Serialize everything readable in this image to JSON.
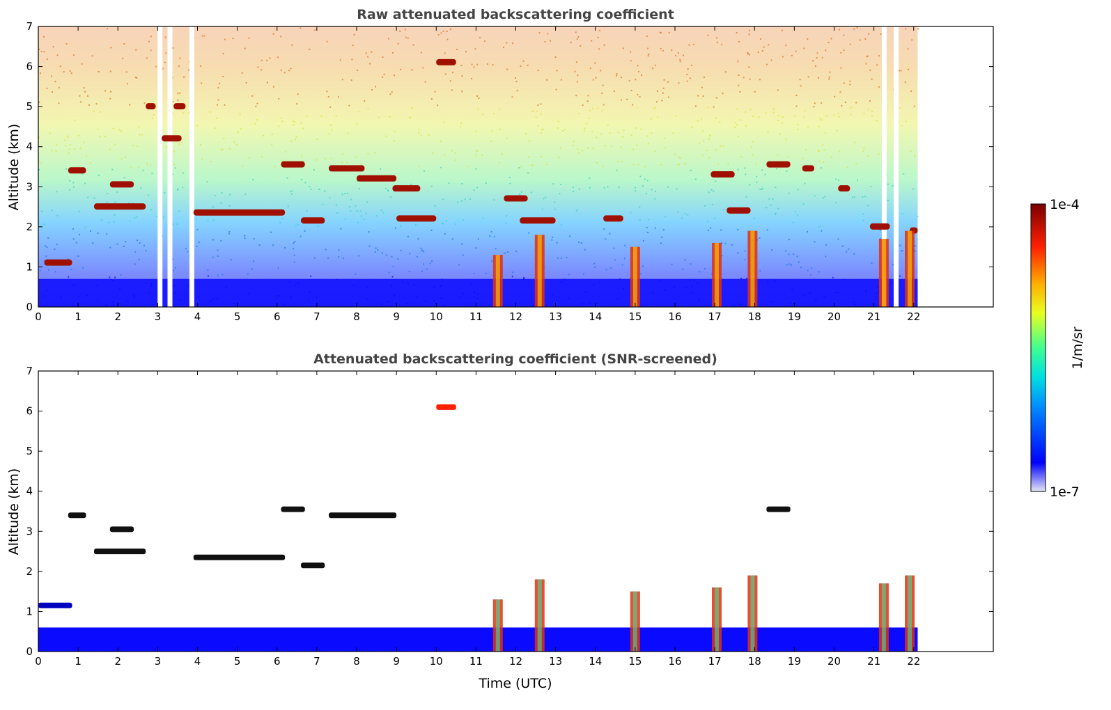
{
  "chart_data": [
    {
      "type": "heatmap",
      "title": "Raw attenuated backscattering coefficient",
      "xlabel": "",
      "ylabel": "Altitude (km)",
      "xlim": [
        0,
        24
      ],
      "ylim": [
        0,
        7
      ],
      "x_ticks": [
        "0",
        "1",
        "2",
        "3",
        "4",
        "5",
        "6",
        "7",
        "8",
        "9",
        "10",
        "11",
        "12",
        "13",
        "14",
        "15",
        "16",
        "17",
        "18",
        "19",
        "20",
        "21",
        "22"
      ],
      "y_ticks": [
        "0",
        "1",
        "2",
        "3",
        "4",
        "5",
        "6",
        "7"
      ],
      "data_time_range": [
        0,
        22.1
      ],
      "gaps_utc": [
        3.05,
        3.3,
        3.85,
        21.25,
        21.55
      ],
      "cloud_layers": [
        {
          "t0": 0.15,
          "t1": 0.85,
          "alt": 1.1
        },
        {
          "t0": 0.75,
          "t1": 1.2,
          "alt": 3.4
        },
        {
          "t0": 1.4,
          "t1": 2.7,
          "alt": 2.5
        },
        {
          "t0": 1.8,
          "t1": 2.4,
          "alt": 3.05
        },
        {
          "t0": 2.7,
          "t1": 2.95,
          "alt": 5.0
        },
        {
          "t0": 3.1,
          "t1": 3.6,
          "alt": 4.2
        },
        {
          "t0": 3.4,
          "t1": 3.7,
          "alt": 5.0
        },
        {
          "t0": 3.9,
          "t1": 6.2,
          "alt": 2.35
        },
        {
          "t0": 6.1,
          "t1": 6.7,
          "alt": 3.55
        },
        {
          "t0": 6.6,
          "t1": 7.2,
          "alt": 2.15
        },
        {
          "t0": 7.3,
          "t1": 8.2,
          "alt": 3.45
        },
        {
          "t0": 8.0,
          "t1": 9.0,
          "alt": 3.2
        },
        {
          "t0": 8.9,
          "t1": 9.6,
          "alt": 2.95
        },
        {
          "t0": 9.0,
          "t1": 10.0,
          "alt": 2.2
        },
        {
          "t0": 10.0,
          "t1": 10.5,
          "alt": 6.1
        },
        {
          "t0": 11.7,
          "t1": 12.3,
          "alt": 2.7
        },
        {
          "t0": 12.1,
          "t1": 13.0,
          "alt": 2.15
        },
        {
          "t0": 14.2,
          "t1": 14.7,
          "alt": 2.2
        },
        {
          "t0": 16.9,
          "t1": 17.5,
          "alt": 3.3
        },
        {
          "t0": 17.3,
          "t1": 17.9,
          "alt": 2.4
        },
        {
          "t0": 18.3,
          "t1": 18.9,
          "alt": 3.55
        },
        {
          "t0": 19.2,
          "t1": 19.5,
          "alt": 3.45
        },
        {
          "t0": 20.1,
          "t1": 20.4,
          "alt": 2.95
        },
        {
          "t0": 20.9,
          "t1": 21.4,
          "alt": 2.0
        },
        {
          "t0": 21.9,
          "t1": 22.1,
          "alt": 1.9
        }
      ],
      "precip_columns": [
        {
          "t": 11.55,
          "top": 1.3
        },
        {
          "t": 12.6,
          "top": 1.8
        },
        {
          "t": 15.0,
          "top": 1.5
        },
        {
          "t": 17.05,
          "top": 1.6
        },
        {
          "t": 17.95,
          "top": 1.9
        },
        {
          "t": 21.25,
          "top": 1.7
        },
        {
          "t": 21.9,
          "top": 1.9
        }
      ]
    },
    {
      "type": "heatmap",
      "title": "Attenuated backscattering coefficient (SNR-screened)",
      "xlabel": "Time (UTC)",
      "ylabel": "Altitude (km)",
      "xlim": [
        0,
        24
      ],
      "ylim": [
        0,
        7
      ],
      "x_ticks": [
        "0",
        "1",
        "2",
        "3",
        "4",
        "5",
        "6",
        "7",
        "8",
        "9",
        "10",
        "11",
        "12",
        "13",
        "14",
        "15",
        "16",
        "17",
        "18",
        "19",
        "20",
        "21",
        "22"
      ],
      "y_ticks": [
        "0",
        "1",
        "2",
        "3",
        "4",
        "5",
        "6",
        "7"
      ],
      "boundary_layer_top_km": 0.6,
      "cloud_layers": [
        {
          "t0": 0.0,
          "t1": 0.85,
          "alt": 1.15
        },
        {
          "t0": 0.75,
          "t1": 1.2,
          "alt": 3.4
        },
        {
          "t0": 1.4,
          "t1": 2.7,
          "alt": 2.5
        },
        {
          "t0": 1.8,
          "t1": 2.4,
          "alt": 3.05
        },
        {
          "t0": 6.1,
          "t1": 6.7,
          "alt": 3.55
        },
        {
          "t0": 3.9,
          "t1": 6.2,
          "alt": 2.35
        },
        {
          "t0": 6.6,
          "t1": 7.2,
          "alt": 2.15
        },
        {
          "t0": 7.3,
          "t1": 9.0,
          "alt": 3.4
        },
        {
          "t0": 10.0,
          "t1": 10.5,
          "alt": 6.1
        },
        {
          "t0": 18.3,
          "t1": 18.9,
          "alt": 3.55
        }
      ]
    }
  ],
  "colorbar": {
    "label": "1/m/sr",
    "max_label": "1e-4",
    "min_label": "1e-7",
    "colormap": "jet"
  }
}
